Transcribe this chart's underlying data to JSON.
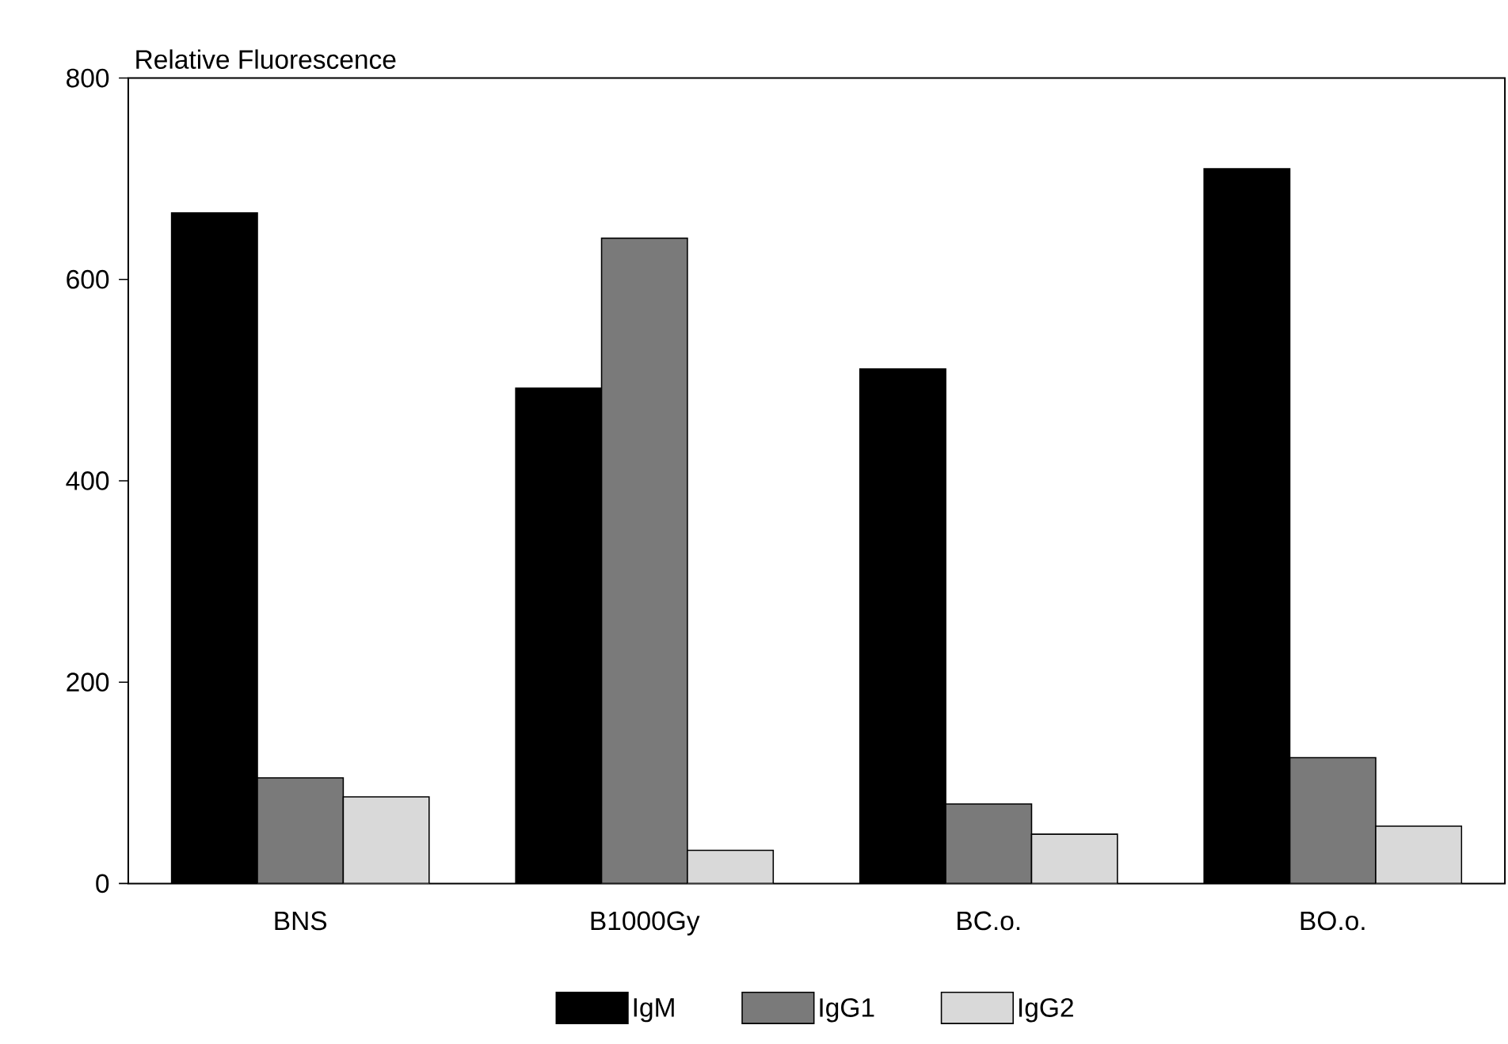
{
  "chart_data": {
    "type": "bar",
    "ylabel": "Relative Fluorescence",
    "categories": [
      "BNS",
      "B1000Gy",
      "BC.o.",
      "BO.o."
    ],
    "series": [
      {
        "name": "IgM",
        "color": "#000000",
        "values": [
          666,
          492,
          511,
          710
        ]
      },
      {
        "name": "IgG1",
        "color": "#7a7a7a",
        "values": [
          105,
          641,
          79,
          125
        ]
      },
      {
        "name": "IgG2",
        "color": "#d9d9d9",
        "values": [
          86,
          33,
          49,
          57
        ]
      }
    ],
    "ylim": [
      0,
      800
    ],
    "yticks": [
      0,
      200,
      400,
      600,
      800
    ],
    "legend": "bottom",
    "grid": false
  }
}
